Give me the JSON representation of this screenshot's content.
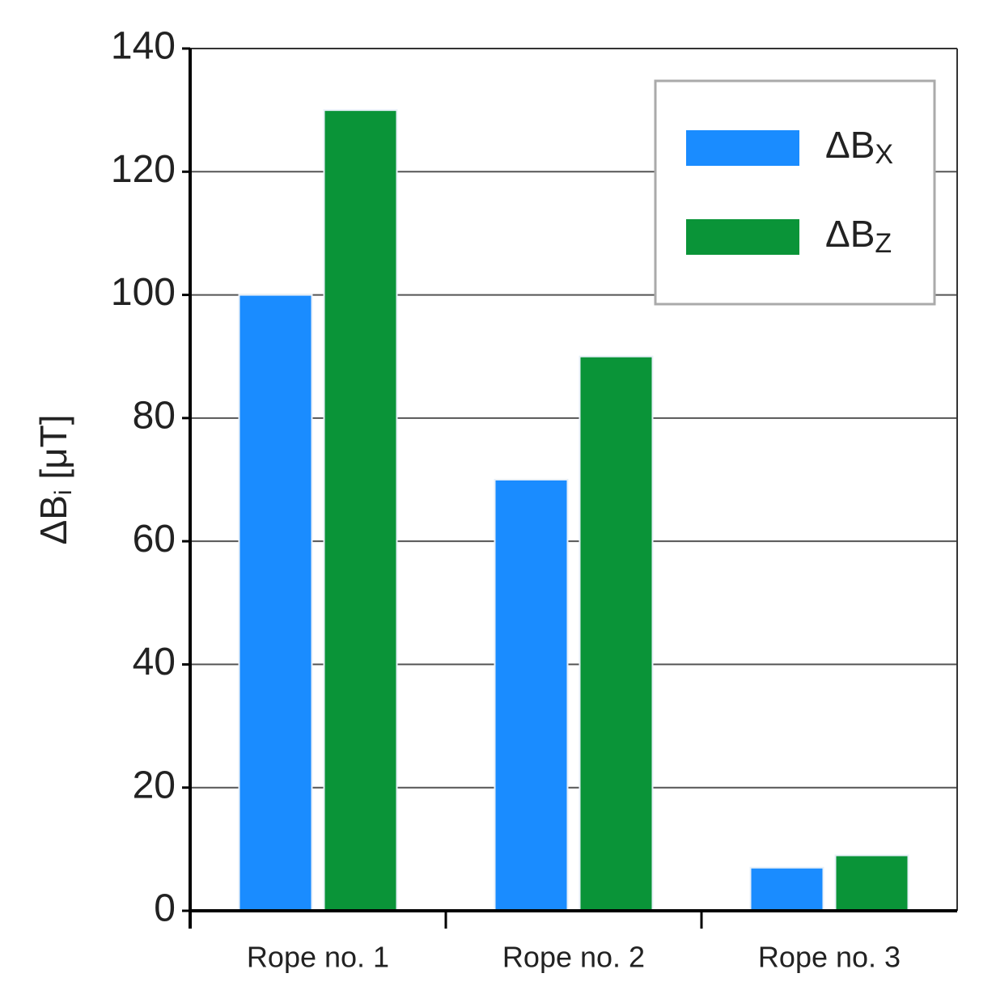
{
  "chart_data": {
    "type": "bar",
    "y_label": "ΔBi [μT]",
    "categories": [
      "Rope no. 1",
      "Rope no. 2",
      "Rope no. 3"
    ],
    "series": [
      {
        "name": "ΔBX",
        "color": "#1a8cff",
        "values": [
          100,
          70,
          7
        ]
      },
      {
        "name": "ΔBZ",
        "color": "#0a9438",
        "values": [
          130,
          90,
          9
        ]
      }
    ],
    "ylim": [
      0,
      140
    ],
    "yticks": [
      0,
      20,
      40,
      60,
      80,
      100,
      120,
      140
    ],
    "grid": true,
    "legend": "upper right"
  }
}
